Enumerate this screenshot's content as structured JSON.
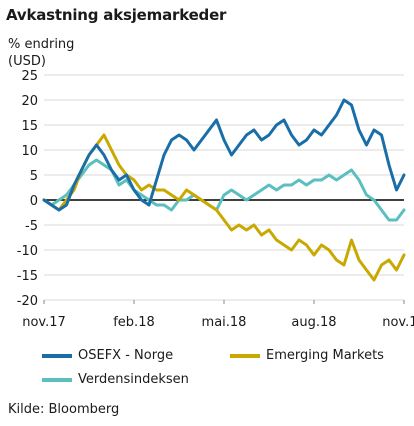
{
  "title": "Avkastning aksjemarkeder",
  "ylabel": "% endring\n(USD)",
  "source": "Kilde: Bloomberg",
  "chart_data": {
    "type": "line",
    "title": "Avkastning aksjemarkeder",
    "ylabel": "% endring (USD)",
    "xlabel": "",
    "ylim": [
      -20,
      25
    ],
    "yticks": [
      -20,
      -15,
      -10,
      -5,
      0,
      5,
      10,
      15,
      20,
      25
    ],
    "xticks": [
      {
        "label": "nov.17",
        "pos": 0
      },
      {
        "label": "feb.18",
        "pos": 3
      },
      {
        "label": "mai.18",
        "pos": 6
      },
      {
        "label": "aug.18",
        "pos": 9
      },
      {
        "label": "nov.18",
        "pos": 12
      }
    ],
    "x_unit": "months since nov.17",
    "grid": "horizontal",
    "legend": "bottom",
    "series": [
      {
        "name": "OSEFX - Norge",
        "color": "#1a6ea8",
        "x": [
          0,
          0.25,
          0.5,
          0.75,
          1,
          1.25,
          1.5,
          1.75,
          2,
          2.25,
          2.5,
          2.75,
          3,
          3.25,
          3.5,
          3.75,
          4,
          4.25,
          4.5,
          4.75,
          5,
          5.25,
          5.5,
          5.75,
          6,
          6.25,
          6.5,
          6.75,
          7,
          7.25,
          7.5,
          7.75,
          8,
          8.25,
          8.5,
          8.75,
          9,
          9.25,
          9.5,
          9.75,
          10,
          10.25,
          10.5,
          10.75,
          11,
          11.25,
          11.5,
          11.75,
          12
        ],
        "values": [
          0,
          -1,
          -2,
          -1,
          3,
          6,
          9,
          11,
          9,
          6,
          4,
          5,
          2,
          0,
          -1,
          4,
          9,
          12,
          13,
          12,
          10,
          12,
          14,
          16,
          12,
          9,
          11,
          13,
          14,
          12,
          13,
          15,
          16,
          13,
          11,
          12,
          14,
          13,
          15,
          17,
          20,
          19,
          14,
          11,
          14,
          13,
          7,
          2,
          5
        ]
      },
      {
        "name": "Emerging Markets",
        "color": "#c9a800",
        "x": [
          0,
          0.25,
          0.5,
          0.75,
          1,
          1.25,
          1.5,
          1.75,
          2,
          2.25,
          2.5,
          2.75,
          3,
          3.25,
          3.5,
          3.75,
          4,
          4.25,
          4.5,
          4.75,
          5,
          5.25,
          5.5,
          5.75,
          6,
          6.25,
          6.5,
          6.75,
          7,
          7.25,
          7.5,
          7.75,
          8,
          8.25,
          8.5,
          8.75,
          9,
          9.25,
          9.5,
          9.75,
          10,
          10.25,
          10.5,
          10.75,
          11,
          11.25,
          11.5,
          11.75,
          12
        ],
        "values": [
          0,
          -1,
          -2,
          0,
          2,
          6,
          9,
          11,
          13,
          10,
          7,
          5,
          4,
          2,
          3,
          2,
          2,
          1,
          0,
          2,
          1,
          0,
          -1,
          -2,
          -4,
          -6,
          -5,
          -6,
          -5,
          -7,
          -6,
          -8,
          -9,
          -10,
          -8,
          -9,
          -11,
          -9,
          -10,
          -12,
          -13,
          -8,
          -12,
          -14,
          -16,
          -13,
          -12,
          -14,
          -11
        ]
      },
      {
        "name": "Verdensindeksen",
        "color": "#5bbfbf",
        "x": [
          0,
          0.25,
          0.5,
          0.75,
          1,
          1.25,
          1.5,
          1.75,
          2,
          2.25,
          2.5,
          2.75,
          3,
          3.25,
          3.5,
          3.75,
          4,
          4.25,
          4.5,
          4.75,
          5,
          5.25,
          5.5,
          5.75,
          6,
          6.25,
          6.5,
          6.75,
          7,
          7.25,
          7.5,
          7.75,
          8,
          8.25,
          8.5,
          8.75,
          9,
          9.25,
          9.5,
          9.75,
          10,
          10.25,
          10.5,
          10.75,
          11,
          11.25,
          11.5,
          11.75,
          12
        ],
        "values": [
          0,
          -1,
          0,
          1,
          3,
          5,
          7,
          8,
          7,
          6,
          3,
          4,
          2,
          1,
          0,
          -1,
          -1,
          -2,
          0,
          0,
          1,
          0,
          -1,
          -2,
          1,
          2,
          1,
          0,
          1,
          2,
          3,
          2,
          3,
          3,
          4,
          3,
          4,
          4,
          5,
          4,
          5,
          6,
          4,
          1,
          0,
          -2,
          -4,
          -4,
          -2
        ]
      }
    ]
  }
}
